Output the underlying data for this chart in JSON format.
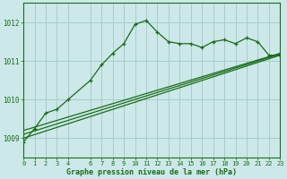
{
  "bg_color": "#cce8e8",
  "grid_color": "#aacccc",
  "line_color": "#1a6b1a",
  "text_color": "#1a6b1a",
  "xlabel": "Graphe pression niveau de la mer (hPa)",
  "xlim": [
    0,
    23
  ],
  "ylim": [
    1008.5,
    1012.5
  ],
  "yticks": [
    1009,
    1010,
    1011,
    1012
  ],
  "xticks": [
    0,
    1,
    2,
    3,
    4,
    6,
    7,
    8,
    9,
    10,
    11,
    12,
    13,
    14,
    15,
    16,
    17,
    18,
    19,
    20,
    21,
    22,
    23
  ],
  "main_x": [
    0,
    1,
    2,
    3,
    4,
    6,
    7,
    8,
    9,
    10,
    11,
    12,
    13,
    14,
    15,
    16,
    17,
    18,
    19,
    20,
    21,
    22,
    23
  ],
  "main_y": [
    1008.9,
    1009.25,
    1009.65,
    1009.75,
    1010.0,
    1010.5,
    1010.9,
    1011.2,
    1011.45,
    1011.95,
    1012.05,
    1011.75,
    1011.5,
    1011.45,
    1011.45,
    1011.35,
    1011.5,
    1011.55,
    1011.45,
    1011.6,
    1011.5,
    1011.15,
    1011.15
  ],
  "trend1_x": [
    0,
    23
  ],
  "trend1_y": [
    1009.0,
    1011.15
  ],
  "trend2_x": [
    0,
    23
  ],
  "trend2_y": [
    1009.1,
    1011.18
  ],
  "trend3_x": [
    0,
    23
  ],
  "trend3_y": [
    1009.2,
    1011.2
  ]
}
